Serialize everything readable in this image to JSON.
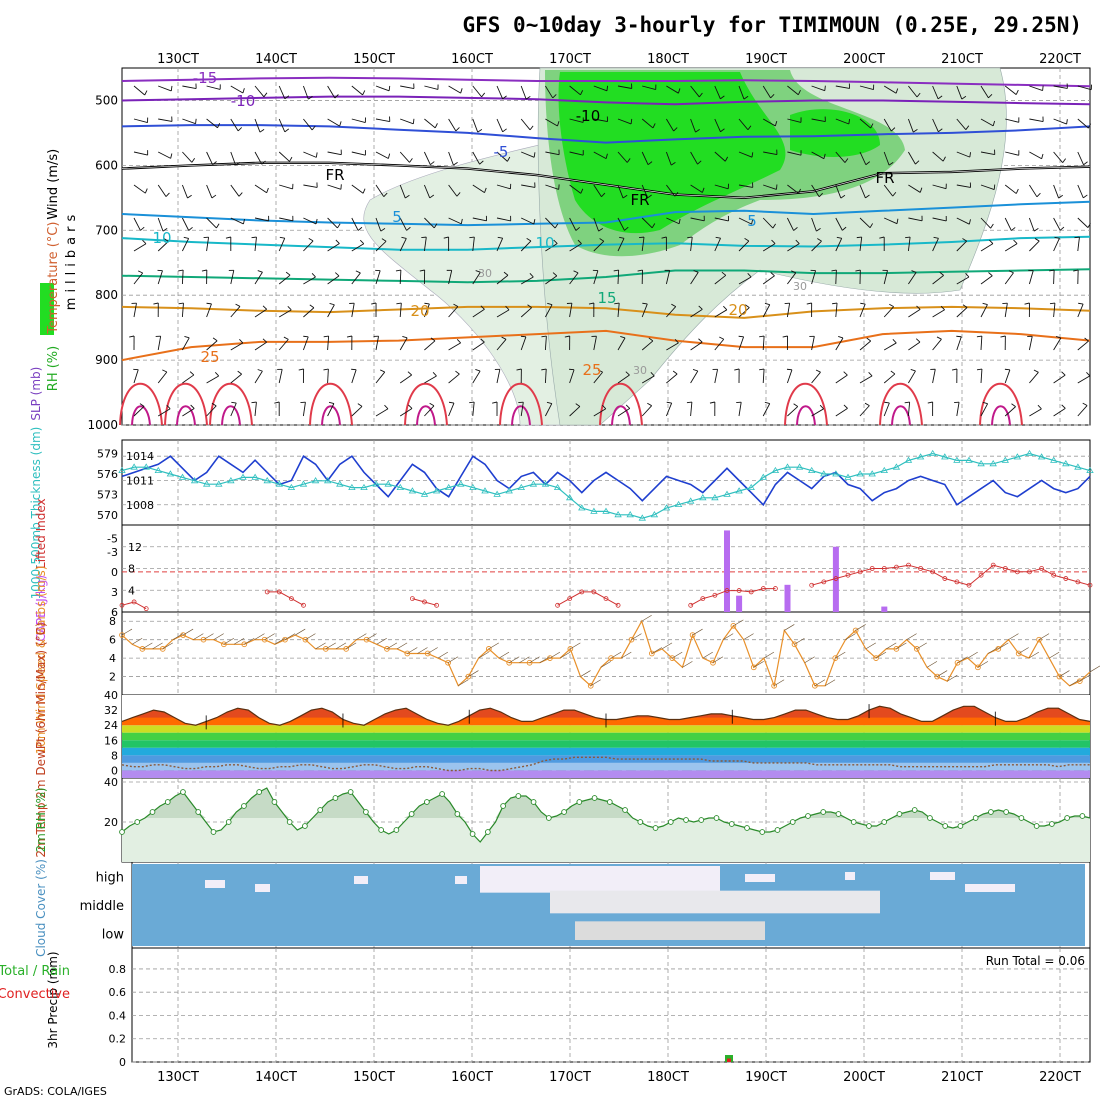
{
  "title": "GFS 0~10day 3-hourly for TIMIMOUN (0.25E, 29.25N)",
  "credit": "GrADS: COLA/IGES",
  "time_labels": [
    "130CT",
    "140CT",
    "150CT",
    "160CT",
    "170CT",
    "180CT",
    "190CT",
    "200CT",
    "210CT",
    "220CT"
  ],
  "colors": {
    "rh_green": "#22dd22",
    "slp": "#1f3fcf",
    "thickness": "#2fbfbf",
    "cape": "#b76cf0",
    "lifted": "#d03030",
    "wind10": "#e8902a",
    "temp_fill": "#e34a1e",
    "rh2m": "#2a8a2a",
    "cloud_blue": "#6aaad6"
  },
  "chart_data": [
    {
      "type": "heatmap",
      "panel": "upper-air",
      "ylabel_parts": [
        "RH (%)",
        "Temperature (°C)",
        "Wind (m/s)"
      ],
      "ylabel_units": "millibars",
      "y_ticks": [
        "500",
        "600",
        "700",
        "800",
        "900",
        "1000"
      ],
      "y_values": [
        500,
        600,
        700,
        800,
        900,
        1000
      ],
      "ylim": [
        1000,
        450
      ],
      "contour_labels": [
        "-15",
        "-10",
        "-10",
        "-5",
        "5",
        "5",
        "FR",
        "FR",
        "FR",
        "10",
        "10",
        "15",
        "20",
        "20",
        "25",
        "25",
        "30",
        "30",
        "30"
      ],
      "isotherms": [
        {
          "label": "-15",
          "color": "#8a2ec0",
          "p": [
            470,
            468,
            466,
            465,
            466,
            468,
            470,
            470,
            470,
            469,
            470,
            472,
            474,
            476,
            478
          ]
        },
        {
          "label": "-10",
          "color": "#7a22b8",
          "p": [
            500,
            498,
            496,
            494,
            494,
            496,
            498,
            503,
            506,
            502,
            500,
            500,
            502,
            504,
            506
          ]
        },
        {
          "label": "-5",
          "color": "#2f4fd6",
          "p": [
            540,
            538,
            538,
            540,
            545,
            550,
            558,
            565,
            560,
            556,
            555,
            552,
            550,
            546,
            540
          ]
        },
        {
          "label": "FR",
          "color": "#000000",
          "p": [
            605,
            600,
            596,
            596,
            600,
            605,
            615,
            630,
            645,
            650,
            640,
            612,
            610,
            605,
            602
          ]
        },
        {
          "label": "5",
          "color": "#1a90d8",
          "p": [
            675,
            680,
            685,
            688,
            690,
            692,
            690,
            688,
            672,
            670,
            675,
            670,
            665,
            660,
            656
          ]
        },
        {
          "label": "10",
          "color": "#18b8c8",
          "p": [
            712,
            718,
            722,
            726,
            730,
            730,
            726,
            722,
            720,
            724,
            725,
            722,
            718,
            712,
            710
          ]
        },
        {
          "label": "15",
          "color": "#10a878",
          "p": [
            770,
            772,
            774,
            776,
            778,
            780,
            778,
            772,
            762,
            762,
            766,
            766,
            764,
            762,
            760
          ]
        },
        {
          "label": "20",
          "color": "#d8901a",
          "p": [
            818,
            820,
            824,
            826,
            822,
            818,
            818,
            820,
            830,
            835,
            825,
            820,
            818,
            820,
            824
          ]
        },
        {
          "label": "25",
          "color": "#e8701a",
          "p": [
            900,
            880,
            872,
            872,
            870,
            865,
            860,
            855,
            870,
            880,
            880,
            860,
            855,
            860,
            870
          ]
        }
      ]
    },
    {
      "type": "line",
      "panel": "slp-thickness",
      "ylabel_left": "1000-500mb Thickness (dm)",
      "ylabel_right": "SLP (mb)",
      "thickness_ticks": [
        "579",
        "576",
        "573",
        "570"
      ],
      "slp_ticks": [
        "1014",
        "1011",
        "1008"
      ],
      "series": [
        {
          "name": "SLP (mb)",
          "values": [
            1011.5,
            1012.0,
            1012.5,
            1013.0,
            1014.0,
            1012.5,
            1011.0,
            1012.0,
            1014.0,
            1013.0,
            1012.0,
            1013.5,
            1012.0,
            1010.5,
            1011.0,
            1014.0,
            1013.0,
            1011.0,
            1013.0,
            1014.0,
            1012.0,
            1010.5,
            1009.0,
            1011.0,
            1013.0,
            1012.0,
            1010.0,
            1009.0,
            1011.5,
            1014.0,
            1013.0,
            1011.0,
            1010.0,
            1011.5,
            1012.0,
            1010.5,
            1012.0,
            1011.0,
            1009.5,
            1011.0,
            1012.0,
            1011.0,
            1010.0,
            1008.5,
            1010.0,
            1011.5,
            1011.0,
            1010.5,
            1009.5,
            1011.0,
            1012.5,
            1011.0,
            1009.5,
            1008.0,
            1010.5,
            1012.0,
            1011.0,
            1010.0,
            1011.5,
            1012.0,
            1010.5,
            1010.0,
            1008.5,
            1009.5,
            1010.0,
            1011.0,
            1011.5,
            1011.0,
            1010.5,
            1008.0,
            1009.0,
            1010.0,
            1011.0,
            1009.5,
            1009.0,
            1010.0,
            1011.0,
            1010.0,
            1009.5,
            1010.0,
            1011.5
          ]
        },
        {
          "name": "1000-500mb Thickness (dm)",
          "values": [
            576.5,
            577.0,
            577.0,
            576.5,
            576.0,
            575.5,
            575.0,
            574.5,
            574.5,
            575.0,
            575.5,
            575.5,
            575.0,
            574.5,
            574.0,
            574.5,
            575.0,
            575.0,
            574.5,
            574.0,
            574.0,
            574.5,
            574.5,
            574.0,
            573.5,
            573.0,
            573.5,
            574.0,
            574.5,
            574.0,
            573.5,
            573.0,
            573.5,
            574.0,
            574.5,
            574.5,
            574.0,
            572.5,
            571.0,
            570.5,
            570.5,
            570.0,
            570.0,
            569.5,
            570.0,
            571.0,
            571.5,
            572.0,
            572.5,
            572.5,
            573.0,
            573.5,
            574.0,
            575.5,
            576.5,
            577.0,
            577.0,
            576.5,
            576.0,
            576.0,
            575.5,
            576.0,
            576.0,
            576.5,
            577.0,
            578.0,
            578.5,
            579.0,
            578.5,
            578.0,
            578.0,
            577.5,
            577.5,
            578.0,
            578.5,
            579.0,
            578.5,
            578.0,
            577.5,
            577.0,
            576.5
          ]
        }
      ]
    },
    {
      "type": "bar",
      "panel": "cape-lifted",
      "ylabel_left": "Lifted Index",
      "ylabel_right": "CAPE (J/kg)",
      "li_ticks": [
        "-5",
        "-3",
        "0",
        "3",
        "6"
      ],
      "cape_ticks": [
        "12",
        "8",
        "4"
      ],
      "series": [
        {
          "name": "CAPE (J/kg)",
          "values": [
            0,
            0,
            0,
            0,
            0,
            0,
            0,
            0,
            0,
            0,
            0,
            0,
            0,
            0,
            0,
            0,
            0,
            0,
            0,
            0,
            0,
            0,
            0,
            0,
            0,
            0,
            0,
            0,
            0,
            0,
            0,
            0,
            0,
            0,
            0,
            0,
            0,
            0,
            0,
            0,
            0,
            0,
            0,
            0,
            0,
            0,
            0,
            0,
            0,
            0,
            15,
            3,
            0,
            0,
            0,
            5,
            0,
            0,
            0,
            12,
            0,
            0,
            0,
            1,
            0,
            0,
            0,
            0,
            0,
            0,
            0,
            0,
            0,
            0,
            0,
            0,
            0,
            0,
            0,
            0,
            0
          ]
        },
        {
          "name": "Lifted Index",
          "values": [
            5,
            4.5,
            5.5,
            null,
            null,
            null,
            null,
            null,
            null,
            null,
            null,
            null,
            3,
            3,
            4,
            5,
            null,
            null,
            null,
            null,
            null,
            null,
            null,
            null,
            4,
            4.5,
            5,
            null,
            null,
            null,
            null,
            null,
            null,
            null,
            null,
            null,
            5,
            4,
            3,
            3,
            4,
            5,
            null,
            null,
            null,
            null,
            null,
            5,
            4,
            3.5,
            2.8,
            2.8,
            3,
            2.5,
            2.5,
            null,
            null,
            2,
            1.5,
            1,
            0.5,
            0,
            -0.5,
            -0.5,
            -0.7,
            -1,
            -0.5,
            0,
            1,
            1.5,
            2,
            0.5,
            -1,
            -0.5,
            0,
            0,
            -0.5,
            0.5,
            1,
            1.5,
            2
          ]
        }
      ]
    },
    {
      "type": "line",
      "panel": "wind10",
      "ylabel": "10m Wind Speed & Barbs (m/s)",
      "y_ticks": [
        "8",
        "6",
        "4",
        "2"
      ],
      "values": [
        6.5,
        5.5,
        5,
        5,
        5,
        6,
        6.5,
        6,
        6,
        6,
        5.5,
        5.5,
        5.5,
        6,
        6,
        5.5,
        6,
        6.5,
        6,
        5,
        5,
        5,
        5,
        6,
        6,
        5.5,
        5,
        5,
        4.5,
        4.5,
        4.5,
        4,
        3.5,
        1,
        2,
        4,
        5,
        4,
        3.5,
        3.5,
        3.5,
        3.5,
        4,
        4,
        5,
        2,
        1,
        3,
        4,
        4,
        6,
        8,
        4.5,
        5,
        4,
        3,
        6.5,
        4,
        3.5,
        6,
        7.5,
        6,
        3,
        4,
        1,
        7,
        5.5,
        3.5,
        1,
        1,
        4,
        6,
        7,
        5,
        4,
        5,
        5,
        6,
        5,
        3,
        2,
        1.5,
        3.5,
        4,
        3,
        4.5,
        5,
        6,
        4.5,
        4,
        6,
        4,
        2,
        1,
        1.5,
        2.5
      ]
    },
    {
      "type": "area",
      "panel": "temp-dewpoint",
      "ylabel": "2m Temp 2m DewPt (6hr Min/Max) (°C)",
      "y_ticks": [
        "40",
        "32",
        "24",
        "16",
        "8",
        "0"
      ],
      "series": [
        {
          "name": "2m Temp",
          "values": [
            26,
            28,
            30,
            32,
            31,
            28,
            25,
            24,
            26,
            28,
            31,
            33,
            32,
            28,
            25,
            24,
            26,
            29,
            32,
            33,
            31,
            27,
            25,
            24,
            27,
            30,
            32,
            33,
            30,
            27,
            25,
            24,
            26,
            29,
            32,
            33,
            31,
            28,
            26,
            26,
            28,
            30,
            32,
            32,
            30,
            28,
            27,
            27,
            28,
            29,
            29,
            28,
            27,
            27,
            28,
            29,
            30,
            30,
            29,
            28,
            27,
            27,
            28,
            30,
            32,
            32,
            30,
            28,
            27,
            27,
            29,
            32,
            34,
            33,
            30,
            28,
            26,
            26,
            29,
            32,
            34,
            34,
            31,
            28,
            26,
            26,
            28,
            31,
            33,
            33,
            30,
            27,
            26
          ]
        },
        {
          "name": "2m DewPt",
          "values": [
            3,
            2,
            2,
            3,
            3,
            2,
            1,
            1,
            2,
            2,
            3,
            3,
            2,
            1,
            1,
            2,
            2,
            3,
            3,
            2,
            1,
            1,
            2,
            3,
            3,
            2,
            1,
            1,
            2,
            2,
            1,
            0,
            0,
            1,
            1,
            0,
            0,
            1,
            2,
            3,
            5,
            6,
            6,
            7,
            7,
            7,
            7,
            6,
            6,
            6,
            6,
            6,
            6,
            6,
            6,
            6,
            5,
            5,
            5,
            5,
            4,
            4,
            4,
            4,
            4,
            4,
            3,
            3,
            3,
            3,
            3,
            3,
            3,
            3,
            2,
            2,
            2,
            2,
            2,
            2,
            2,
            2,
            2,
            3,
            3,
            3,
            3,
            3,
            3,
            2,
            3,
            3,
            3
          ]
        }
      ]
    },
    {
      "type": "area",
      "panel": "rh2m",
      "ylabel": "2m RH (%)",
      "y_ticks": [
        "40",
        "20"
      ],
      "values": [
        15,
        18,
        20,
        22,
        25,
        28,
        30,
        33,
        35,
        30,
        25,
        20,
        15,
        16,
        20,
        25,
        28,
        32,
        35,
        37,
        30,
        25,
        20,
        16,
        18,
        22,
        26,
        30,
        32,
        34,
        35,
        30,
        25,
        20,
        16,
        14,
        16,
        20,
        24,
        28,
        30,
        32,
        34,
        30,
        24,
        20,
        14,
        10,
        15,
        20,
        28,
        32,
        33,
        33,
        30,
        25,
        22,
        23,
        25,
        28,
        30,
        31,
        32,
        31,
        30,
        28,
        26,
        22,
        20,
        18,
        17,
        18,
        20,
        22,
        21,
        20,
        21,
        22,
        22,
        20,
        19,
        18,
        17,
        16,
        15,
        15,
        16,
        18,
        20,
        22,
        23,
        24,
        25,
        25,
        24,
        22,
        20,
        19,
        18,
        18,
        20,
        22,
        24,
        25,
        26,
        25,
        22,
        20,
        18,
        17,
        18,
        20,
        22,
        24,
        25,
        26,
        25,
        24,
        22,
        20,
        18,
        18,
        19,
        20,
        22,
        23,
        23,
        22
      ]
    },
    {
      "type": "heatmap",
      "panel": "cloud-cover",
      "ylabel": "Cloud Cover (%)",
      "rows": [
        "high",
        "middle",
        "low"
      ]
    },
    {
      "type": "bar",
      "panel": "precip",
      "ylabel": "3hr Precip (mm)",
      "legend_total": "Total / Rain",
      "legend_conv": "Convective",
      "y_ticks": [
        "0.8",
        "0.6",
        "0.4",
        "0.2",
        "0"
      ],
      "run_total": "Run Total = 0.06",
      "bars": [
        {
          "time": "18CT",
          "total": 0.06,
          "convective": 0.03
        }
      ]
    }
  ]
}
